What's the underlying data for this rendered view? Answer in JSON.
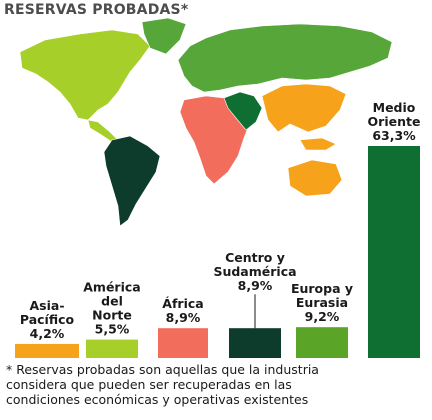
{
  "chart_data": {
    "type": "bar",
    "title": "RESERVAS PROBADAS*",
    "unit": "%",
    "categories": [
      "Asia-Pacífico",
      "América del Norte",
      "África",
      "Centro y Sudamérica",
      "Europa y Eurasia",
      "Medio Oriente"
    ],
    "label_lines": [
      [
        "Asia-",
        "Pacífico",
        "4,2%"
      ],
      [
        "América",
        "del",
        "Norte",
        "5,5%"
      ],
      [
        "África",
        "8,9%"
      ],
      [
        "Centro y",
        "Sudamérica",
        "8,9%"
      ],
      [
        "Europa y",
        "Eurasia",
        "9,2%"
      ],
      [
        "Medio",
        "Oriente",
        "63,3%"
      ]
    ],
    "values": [
      4.2,
      5.5,
      8.9,
      8.9,
      9.2,
      63.3
    ],
    "colors": [
      "#f7a21b",
      "#a6cf2a",
      "#f26d5b",
      "#0d3b2c",
      "#5aa427",
      "#0f6e31"
    ],
    "ylim": [
      0,
      63.3
    ],
    "map_colors": {
      "default": "#56a63a",
      "north_america": "#a6cf2a",
      "south_america": "#0d3b2c",
      "africa": "#f26d5b",
      "middle_east": "#0f6e31",
      "asia_pacific": "#f7a21b"
    }
  },
  "footnote": {
    "lines": [
      "* Reservas probadas son aquellas que la industria",
      "considera que pueden ser recuperadas en las",
      "condiciones económicas y operativas existentes"
    ]
  }
}
